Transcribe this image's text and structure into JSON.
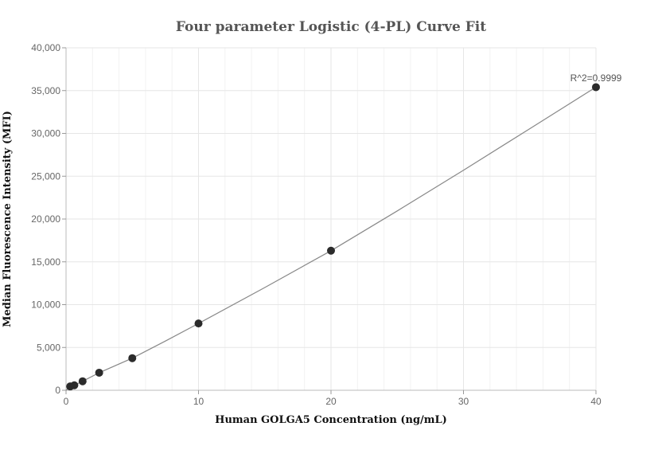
{
  "chart_data": {
    "type": "scatter",
    "title": "Four parameter Logistic (4-PL) Curve Fit",
    "xlabel": "Human GOLGA5 Concentration (ng/mL)",
    "ylabel": "Median Fluorescence Intensity (MFI)",
    "xlim": [
      0,
      40
    ],
    "ylim": [
      0,
      40000
    ],
    "xticks": [
      0,
      10,
      20,
      30,
      40
    ],
    "yticks": [
      0,
      5000,
      10000,
      15000,
      20000,
      25000,
      30000,
      35000,
      40000
    ],
    "x_tick_labels": [
      "0",
      "10",
      "20",
      "30",
      "40"
    ],
    "y_tick_labels": [
      "0",
      "5,000",
      "10,000",
      "15,000",
      "20,000",
      "25,000",
      "30,000",
      "35,000",
      "40,000"
    ],
    "grid": true,
    "annotation": "R^2=0.9999",
    "series": [
      {
        "x": [
          0.3125,
          0.625,
          1.25,
          2.5,
          5,
          10,
          20,
          40
        ],
        "y": [
          450,
          580,
          1050,
          2050,
          3750,
          7800,
          16300,
          35400
        ]
      }
    ],
    "fit_curve": {
      "x": [
        0,
        0.3125,
        0.625,
        1.25,
        2.5,
        5,
        7.5,
        10,
        15,
        20,
        25,
        30,
        35,
        40
      ],
      "y": [
        0,
        450,
        580,
        1050,
        2050,
        3750,
        5750,
        7800,
        12000,
        16300,
        20950,
        25700,
        30550,
        35400
      ]
    },
    "colors": {
      "points": "#2b2b2b",
      "fit_line": "#888888",
      "grid": "#e6e6e6"
    }
  }
}
